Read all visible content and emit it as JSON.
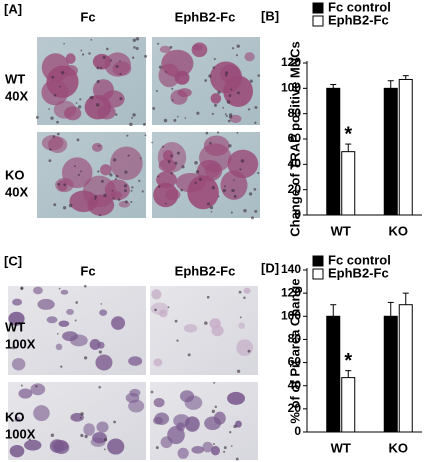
{
  "image_panels": [
    {
      "label": "[A]",
      "columns": [
        "Fc",
        "EphB2-Fc"
      ],
      "rows": [
        {
          "genotype": "WT",
          "magnification": "40X"
        },
        {
          "genotype": "KO",
          "magnification": "40X"
        }
      ]
    },
    {
      "label": "[C]",
      "columns": [
        "Fc",
        "EphB2-Fc"
      ],
      "rows": [
        {
          "genotype": "WT",
          "magnification": "100X"
        },
        {
          "genotype": "KO",
          "magnification": "100X"
        }
      ]
    }
  ],
  "chart_data": [
    {
      "type": "bar",
      "panel_label": "[B]",
      "ylabel": "Change of TRAP positive MNCs",
      "categories": [
        "WT",
        "KO"
      ],
      "series": [
        {
          "name": "Fc control",
          "color": "#000000",
          "values": [
            100,
            100
          ],
          "errors": [
            3,
            6
          ]
        },
        {
          "name": "EphB2-Fc",
          "color": "#ffffff",
          "values": [
            50,
            107
          ],
          "errors": [
            6,
            3
          ]
        }
      ],
      "annotation": "*",
      "ylim": [
        0,
        120
      ],
      "yticks": [
        0,
        20,
        40,
        60,
        80,
        100,
        120
      ]
    },
    {
      "type": "bar",
      "panel_label": "[D]",
      "ylabel": "% of of Pit area Change",
      "categories": [
        "WT",
        "KO"
      ],
      "series": [
        {
          "name": "Fc control",
          "color": "#000000",
          "values": [
            100,
            100
          ],
          "errors": [
            10,
            12
          ]
        },
        {
          "name": "EphB2-Fc",
          "color": "#ffffff",
          "values": [
            47,
            110
          ],
          "errors": [
            6,
            10
          ]
        }
      ],
      "annotation": "*",
      "ylim": [
        0,
        140
      ],
      "yticks": [
        0,
        20,
        40,
        60,
        80,
        100,
        120,
        140
      ]
    }
  ]
}
